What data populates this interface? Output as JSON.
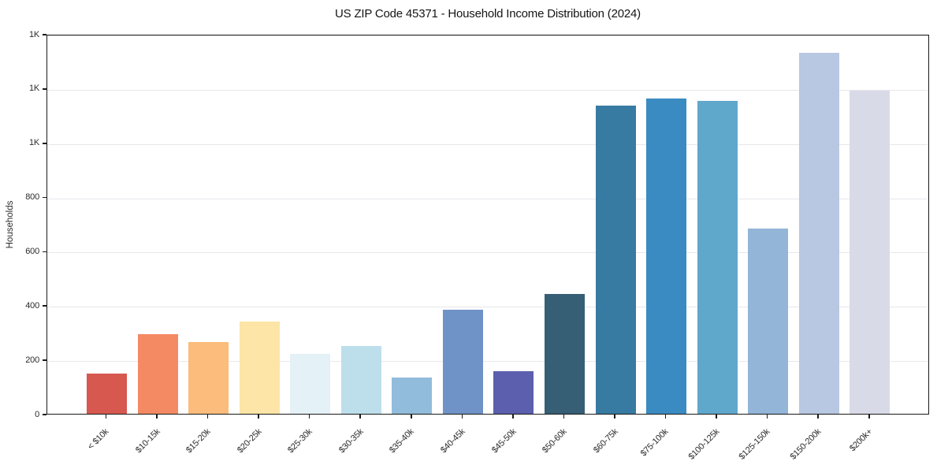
{
  "chart_data": {
    "type": "bar",
    "title": "US ZIP Code 45371 - Household Income Distribution (2024)",
    "xlabel": "",
    "ylabel": "Households",
    "ylim": [
      0,
      1400
    ],
    "grid": true,
    "legend": false,
    "background_color": "#ffffff",
    "gridline_color": "#e8e8ec",
    "spine_color": "#1a1a1a",
    "categories": [
      "< $10k",
      "$10-15k",
      "$15-20k",
      "$20-25k",
      "$25-30k",
      "$30-35k",
      "$35-40k",
      "$40-45k",
      "$45-50k",
      "$50-60k",
      "$60-75k",
      "$75-100k",
      "$100-125k",
      "$125-150k",
      "$150-200k",
      "$200k+"
    ],
    "values": [
      147,
      293,
      263,
      341,
      222,
      249,
      134,
      384,
      157,
      442,
      1137,
      1161,
      1152,
      683,
      1330,
      1190
    ],
    "bar_colors": [
      "#d6584f",
      "#f48a64",
      "#fbbc7c",
      "#fce5a6",
      "#e4f1f7",
      "#bddfeb",
      "#92bcdb",
      "#6f93c7",
      "#5b5fae",
      "#365e75",
      "#377aa2",
      "#3a8bc2",
      "#60a7cc",
      "#92b5d8",
      "#b8c8e2",
      "#d8dae8"
    ],
    "ytick_values": [
      0,
      200,
      400,
      600,
      800,
      1000,
      1200,
      1400
    ],
    "ytick_labels": [
      "0",
      "200",
      "400",
      "600",
      "800",
      "1K",
      "1K",
      "1K"
    ]
  }
}
